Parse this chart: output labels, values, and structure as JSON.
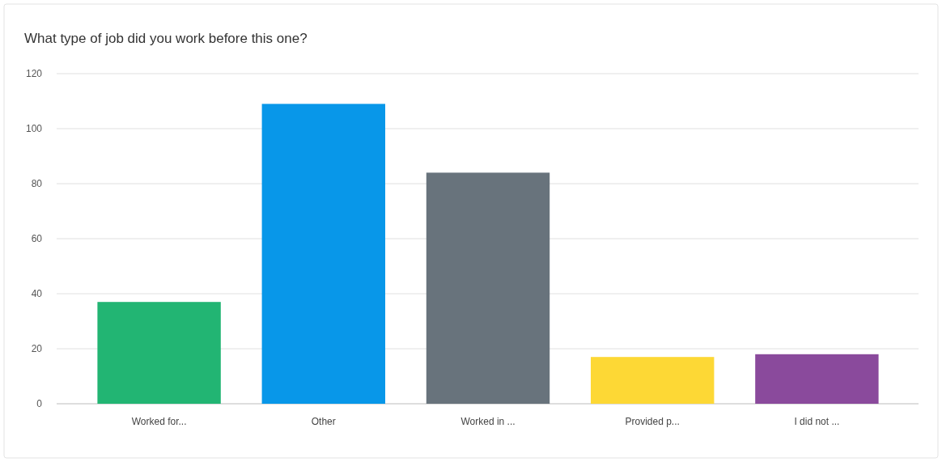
{
  "chart_data": {
    "type": "bar",
    "title": "What type of job did you work before this one?",
    "categories": [
      "Worked for...",
      "Other",
      "Worked in ...",
      "Provided p...",
      "I did not ..."
    ],
    "values": [
      37,
      109,
      84,
      17,
      18
    ],
    "colors": [
      "#22b573",
      "#0897e9",
      "#68737c",
      "#fdd835",
      "#8a4a9c"
    ],
    "ylim": [
      0,
      120
    ],
    "yticks": [
      0,
      20,
      40,
      60,
      80,
      100,
      120
    ],
    "grid": "y"
  }
}
